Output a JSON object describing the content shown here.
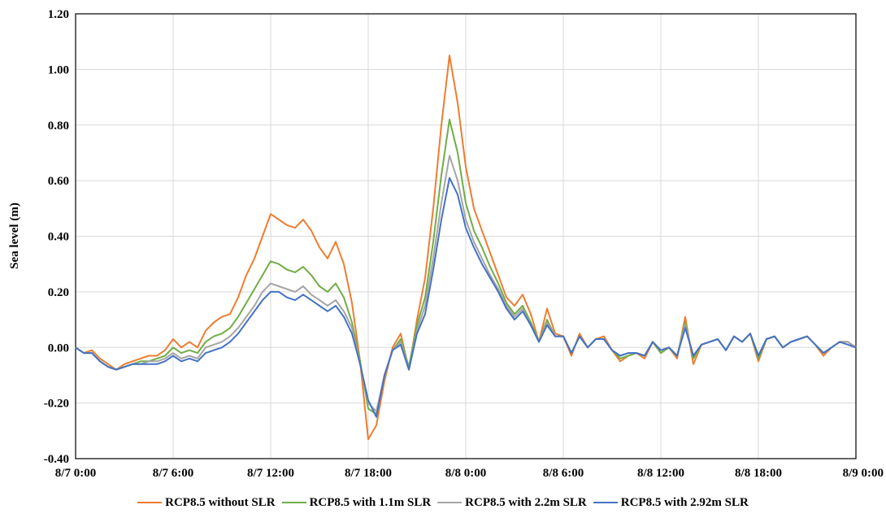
{
  "chart_data": {
    "type": "line",
    "xlabel": "",
    "ylabel": "Sea level (m)",
    "ylim": [
      -0.4,
      1.2
    ],
    "y_ticks": [
      "-0.40",
      "-0.20",
      "0.00",
      "0.20",
      "0.40",
      "0.60",
      "0.80",
      "1.00",
      "1.20"
    ],
    "x_range_hours": [
      0,
      48
    ],
    "x_ticks": [
      "8/7 0:00",
      "8/7 6:00",
      "8/7 12:00",
      "8/7 18:00",
      "8/8 0:00",
      "8/8 6:00",
      "8/8 12:00",
      "8/8 18:00",
      "8/9 0:00"
    ],
    "grid": true,
    "legend_position": "bottom",
    "x": [
      0,
      0.5,
      1,
      1.5,
      2,
      2.5,
      3,
      3.5,
      4,
      4.5,
      5,
      5.5,
      6,
      6.5,
      7,
      7.5,
      8,
      8.5,
      9,
      9.5,
      10,
      10.5,
      11,
      11.5,
      12,
      12.5,
      13,
      13.5,
      14,
      14.5,
      15,
      15.5,
      16,
      16.5,
      17,
      17.5,
      18,
      18.5,
      19,
      19.5,
      20,
      20.5,
      21,
      21.5,
      22,
      22.5,
      23,
      23.5,
      24,
      24.5,
      25,
      25.5,
      26,
      26.5,
      27,
      27.5,
      28,
      28.5,
      29,
      29.5,
      30,
      30.5,
      31,
      31.5,
      32,
      32.5,
      33,
      33.5,
      34,
      34.5,
      35,
      35.5,
      36,
      36.5,
      37,
      37.5,
      38,
      38.5,
      39,
      39.5,
      40,
      40.5,
      41,
      41.5,
      42,
      42.5,
      43,
      43.5,
      44,
      44.5,
      45,
      45.5,
      46,
      46.5,
      47,
      47.5,
      48
    ],
    "series": [
      {
        "name": "RCP8.5 without SLR",
        "color": "#ED7D31",
        "values": [
          0.0,
          -0.02,
          -0.01,
          -0.04,
          -0.06,
          -0.08,
          -0.06,
          -0.05,
          -0.04,
          -0.03,
          -0.03,
          -0.01,
          0.03,
          0.0,
          0.02,
          0.0,
          0.06,
          0.09,
          0.11,
          0.12,
          0.18,
          0.26,
          0.32,
          0.4,
          0.48,
          0.46,
          0.44,
          0.43,
          0.46,
          0.42,
          0.36,
          0.32,
          0.38,
          0.3,
          0.16,
          -0.05,
          -0.33,
          -0.28,
          -0.12,
          0.0,
          0.05,
          -0.08,
          0.1,
          0.25,
          0.5,
          0.8,
          1.05,
          0.88,
          0.65,
          0.5,
          0.42,
          0.34,
          0.26,
          0.18,
          0.15,
          0.19,
          0.12,
          0.02,
          0.14,
          0.05,
          0.04,
          -0.03,
          0.05,
          0.0,
          0.03,
          0.04,
          -0.01,
          -0.05,
          -0.03,
          -0.02,
          -0.04,
          0.02,
          -0.02,
          0.0,
          -0.04,
          0.11,
          -0.06,
          0.01,
          0.02,
          0.03,
          -0.01,
          0.04,
          0.02,
          0.05,
          -0.05,
          0.03,
          0.04,
          0.0,
          0.02,
          0.03,
          0.04,
          0.01,
          -0.03,
          0.0,
          0.02,
          0.02,
          0.0
        ]
      },
      {
        "name": "RCP8.5 with 1.1m SLR",
        "color": "#70AD47",
        "values": [
          0.0,
          -0.02,
          -0.02,
          -0.05,
          -0.07,
          -0.08,
          -0.07,
          -0.06,
          -0.05,
          -0.05,
          -0.04,
          -0.03,
          0.0,
          -0.02,
          -0.01,
          -0.02,
          0.02,
          0.04,
          0.05,
          0.07,
          0.11,
          0.16,
          0.21,
          0.26,
          0.31,
          0.3,
          0.28,
          0.27,
          0.29,
          0.26,
          0.22,
          0.2,
          0.23,
          0.18,
          0.09,
          -0.05,
          -0.22,
          -0.24,
          -0.1,
          -0.01,
          0.03,
          -0.07,
          0.08,
          0.18,
          0.38,
          0.62,
          0.82,
          0.7,
          0.52,
          0.42,
          0.36,
          0.29,
          0.23,
          0.16,
          0.12,
          0.15,
          0.09,
          0.02,
          0.1,
          0.04,
          0.04,
          -0.02,
          0.04,
          0.0,
          0.03,
          0.03,
          -0.01,
          -0.04,
          -0.03,
          -0.02,
          -0.03,
          0.02,
          -0.02,
          0.0,
          -0.03,
          0.09,
          -0.04,
          0.01,
          0.02,
          0.03,
          -0.01,
          0.04,
          0.02,
          0.05,
          -0.04,
          0.03,
          0.04,
          0.0,
          0.02,
          0.03,
          0.04,
          0.01,
          -0.02,
          0.0,
          0.02,
          0.02,
          0.0
        ]
      },
      {
        "name": "RCP8.5 with 2.2m SLR",
        "color": "#A5A5A5",
        "values": [
          0.0,
          -0.02,
          -0.02,
          -0.05,
          -0.07,
          -0.08,
          -0.07,
          -0.06,
          -0.06,
          -0.05,
          -0.05,
          -0.04,
          -0.02,
          -0.04,
          -0.03,
          -0.04,
          0.0,
          0.01,
          0.02,
          0.04,
          0.07,
          0.11,
          0.15,
          0.2,
          0.23,
          0.22,
          0.21,
          0.2,
          0.22,
          0.19,
          0.17,
          0.15,
          0.17,
          0.13,
          0.07,
          -0.06,
          -0.2,
          -0.23,
          -0.1,
          -0.01,
          0.02,
          -0.08,
          0.06,
          0.15,
          0.32,
          0.52,
          0.69,
          0.6,
          0.46,
          0.38,
          0.32,
          0.26,
          0.21,
          0.15,
          0.11,
          0.14,
          0.08,
          0.02,
          0.09,
          0.04,
          0.04,
          -0.02,
          0.04,
          0.0,
          0.03,
          0.03,
          -0.01,
          -0.03,
          -0.02,
          -0.02,
          -0.03,
          0.02,
          -0.01,
          0.0,
          -0.03,
          0.08,
          -0.03,
          0.01,
          0.02,
          0.03,
          -0.01,
          0.04,
          0.02,
          0.05,
          -0.03,
          0.03,
          0.04,
          0.0,
          0.02,
          0.03,
          0.04,
          0.01,
          -0.02,
          0.0,
          0.02,
          0.02,
          0.0
        ]
      },
      {
        "name": "RCP8.5 with 2.92m SLR",
        "color": "#4472C4",
        "values": [
          0.0,
          -0.02,
          -0.02,
          -0.05,
          -0.07,
          -0.08,
          -0.07,
          -0.06,
          -0.06,
          -0.06,
          -0.06,
          -0.05,
          -0.03,
          -0.05,
          -0.04,
          -0.05,
          -0.02,
          -0.01,
          0.0,
          0.02,
          0.05,
          0.09,
          0.13,
          0.17,
          0.2,
          0.2,
          0.18,
          0.17,
          0.19,
          0.17,
          0.15,
          0.13,
          0.15,
          0.11,
          0.05,
          -0.06,
          -0.19,
          -0.25,
          -0.1,
          -0.01,
          0.01,
          -0.08,
          0.05,
          0.12,
          0.28,
          0.46,
          0.61,
          0.55,
          0.43,
          0.36,
          0.3,
          0.25,
          0.2,
          0.14,
          0.1,
          0.13,
          0.08,
          0.02,
          0.08,
          0.04,
          0.04,
          -0.02,
          0.04,
          0.0,
          0.03,
          0.03,
          -0.01,
          -0.03,
          -0.02,
          -0.02,
          -0.03,
          0.02,
          -0.01,
          0.0,
          -0.03,
          0.07,
          -0.03,
          0.01,
          0.02,
          0.03,
          -0.01,
          0.04,
          0.02,
          0.05,
          -0.03,
          0.03,
          0.04,
          0.0,
          0.02,
          0.03,
          0.04,
          0.01,
          -0.02,
          0.0,
          0.02,
          0.01,
          0.0
        ]
      }
    ]
  }
}
